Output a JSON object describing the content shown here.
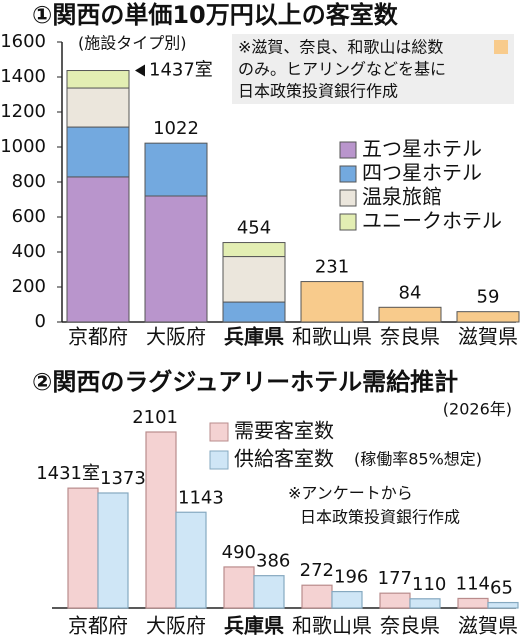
{
  "chart_data": [
    {
      "type": "stacked_bar",
      "title": "①関西の単価10万円以上の客室数",
      "subtitle": "(施設タイプ別)",
      "categories": [
        "京都府",
        "大阪府",
        "兵庫県",
        "和歌山県",
        "奈良県",
        "滋賀県"
      ],
      "highlight_index": 2,
      "series": [
        {
          "name": "五つ星ホテル",
          "color": "#b995cc",
          "values": [
            829,
            720,
            null,
            null,
            null,
            null
          ]
        },
        {
          "name": "四つ星ホテル",
          "color": "#73a9df",
          "values": [
            285,
            302,
            114,
            null,
            null,
            null
          ]
        },
        {
          "name": "温泉旅館",
          "color": "#ebe6dc",
          "values": [
            223,
            null,
            260,
            null,
            null,
            null
          ]
        },
        {
          "name": "ユニークホテル",
          "color": "#e3eeb3",
          "values": [
            100,
            null,
            80,
            null,
            null,
            null
          ]
        },
        {
          "color": "#f8cb8c",
          "values": [
            null,
            null,
            null,
            231,
            84,
            59
          ]
        }
      ],
      "totals": {
        "values": [
          1437,
          1022,
          454
        ],
        "value_labels": [
          "1437室",
          "1022",
          "454"
        ]
      },
      "note": [
        "※滋賀、奈良、和歌山は総数",
        "のみ。ヒアリングなどを基に",
        "日本政策投資銀行作成"
      ],
      "ylim": [
        0,
        1600
      ],
      "yticks": [
        0,
        200,
        400,
        600,
        800,
        1000,
        1200,
        1400,
        1600
      ]
    },
    {
      "type": "grouped_bar",
      "title": "②関西のラグジュアリーホテル需給推計",
      "subtitle": "(2026年)",
      "categories": [
        "京都府",
        "大阪府",
        "兵庫県",
        "和歌山県",
        "奈良県",
        "滋賀県"
      ],
      "highlight_index": 2,
      "series": [
        {
          "name": "需要客室数",
          "color": "#f4d2d2",
          "values": [
            1431,
            2101,
            490,
            272,
            177,
            114
          ],
          "value_labels": [
            "1431室",
            "2101",
            "490",
            "272",
            "177",
            "114"
          ]
        },
        {
          "name": "供給客室数",
          "name_note": "(稼働率85%想定)",
          "color": "#cfe6f6",
          "values": [
            1373,
            1143,
            386,
            196,
            110,
            65
          ]
        }
      ],
      "note": [
        "※アンケートから",
        "日本政策投資銀行作成"
      ]
    }
  ]
}
